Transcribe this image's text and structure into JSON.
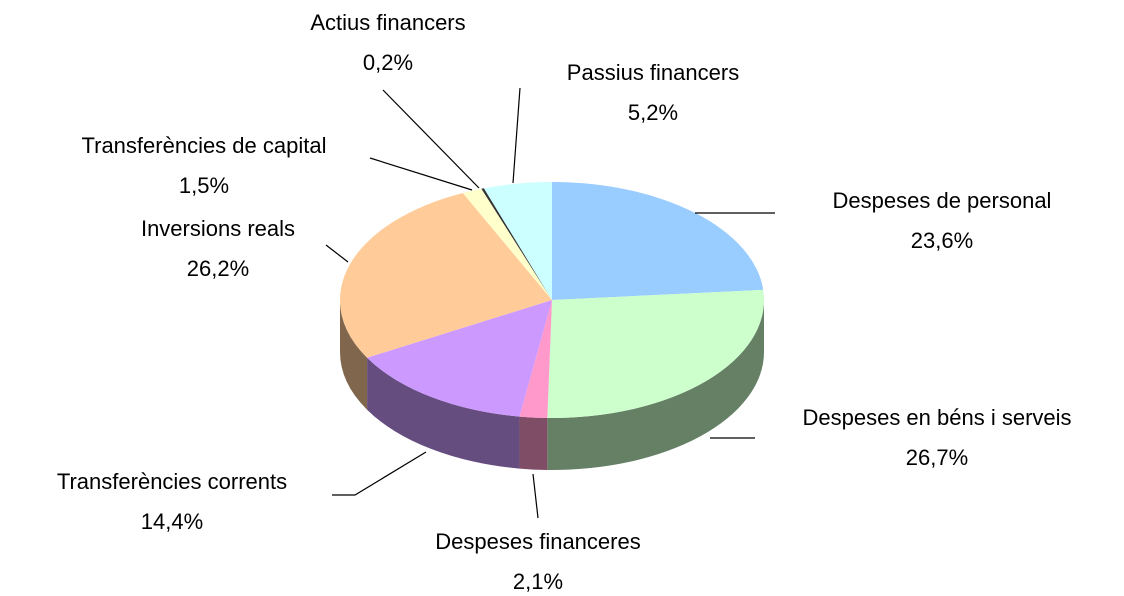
{
  "chart_data": {
    "type": "pie3d",
    "categories": [
      "Despeses de personal",
      "Despeses en béns i serveis",
      "Despeses financeres",
      "Transferències corrents",
      "Inversions reals",
      "Transferències de capital",
      "Actius financers",
      "Passius financers"
    ],
    "values": [
      23.6,
      26.7,
      2.1,
      14.4,
      26.2,
      1.5,
      0.2,
      5.2
    ],
    "value_labels": [
      "23,6%",
      "26,7%",
      "2,1%",
      "14,4%",
      "26,2%",
      "1,5%",
      "0,2%",
      "5,2%"
    ],
    "colors": [
      "#99ccff",
      "#ccffcc",
      "#ff99cc",
      "#cc99ff",
      "#ffcc99",
      "#ffffcc",
      "#333333",
      "#ccffff"
    ]
  }
}
